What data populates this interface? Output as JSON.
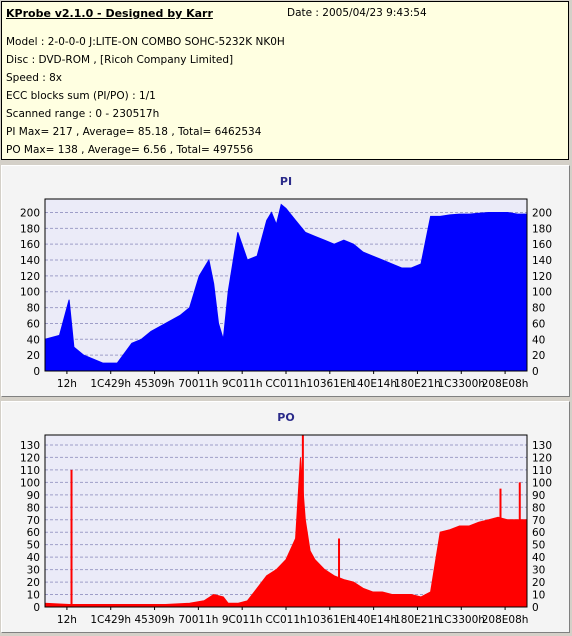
{
  "info": {
    "title": "KProbe v2.1.0 - Designed by Karr",
    "date": "Date : 2005/04/23 9:43:54",
    "model": "Model : 2-0-0-0 J:LITE-ON COMBO SOHC-5232K NK0H",
    "disc": "Disc : DVD-ROM ,  [Ricoh Company Limited]",
    "speed": "Speed : 8x",
    "ecc": "ECC blocks sum (PI/PO) : 1/1",
    "range": "Scanned range : 0 - 230517h",
    "pi": "PI Max= 217 , Average= 85.18 , Total= 6462534",
    "po": "PO Max= 138 , Average= 6.56 , Total= 497556"
  },
  "colors": {
    "pi": "#0000ff",
    "po": "#ff0000",
    "plot_bg": "#ebebf8",
    "grid": "#9e9ec8"
  },
  "chart_data": [
    {
      "type": "area",
      "title": "PI",
      "x_tick_labels": [
        "12h",
        "1C429h",
        "45309h",
        "70011h",
        "9C011h",
        "CC011h",
        "10361Eh",
        "140E14h",
        "180E21h",
        "1C3300h",
        "208E08h"
      ],
      "xlim": [
        0,
        100
      ],
      "ylim": [
        0,
        217
      ],
      "y_ticks": [
        0,
        20,
        40,
        60,
        80,
        100,
        120,
        140,
        160,
        180,
        200
      ],
      "grid": true,
      "series": [
        {
          "x": [
            0,
            3,
            5,
            6,
            8,
            10,
            12,
            15,
            18,
            20,
            22,
            25,
            28,
            30,
            32,
            34,
            35,
            36,
            37,
            38,
            40,
            42,
            44,
            46,
            47,
            48,
            49,
            50,
            52,
            54,
            56,
            58,
            60,
            62,
            64,
            66,
            68,
            70,
            72,
            74,
            76,
            78,
            80,
            82,
            84,
            86,
            88,
            90,
            92,
            94,
            96,
            98,
            100
          ],
          "values": [
            40,
            45,
            90,
            30,
            20,
            15,
            10,
            10,
            35,
            40,
            50,
            60,
            70,
            80,
            120,
            140,
            110,
            60,
            40,
            100,
            175,
            140,
            145,
            190,
            200,
            185,
            210,
            205,
            190,
            175,
            170,
            165,
            160,
            165,
            160,
            150,
            145,
            140,
            135,
            130,
            130,
            135,
            195,
            195,
            197,
            198,
            198,
            199,
            200,
            200,
            200,
            198,
            198
          ]
        }
      ]
    },
    {
      "type": "area",
      "title": "PO",
      "x_tick_labels": [
        "12h",
        "1C429h",
        "45309h",
        "70011h",
        "9C011h",
        "CC011h",
        "10361Eh",
        "140E14h",
        "180E21h",
        "1C3300h",
        "208E08h"
      ],
      "xlim": [
        0,
        100
      ],
      "ylim": [
        0,
        138
      ],
      "y_ticks": [
        0,
        10,
        20,
        30,
        40,
        50,
        60,
        70,
        80,
        90,
        100,
        110,
        120,
        130
      ],
      "grid": true,
      "spikes": [
        {
          "x": 5.5,
          "y": 110
        },
        {
          "x": 53.5,
          "y": 138
        },
        {
          "x": 61,
          "y": 55
        },
        {
          "x": 98.5,
          "y": 100
        },
        {
          "x": 94.5,
          "y": 95
        }
      ],
      "series": [
        {
          "x": [
            0,
            5,
            10,
            15,
            20,
            25,
            30,
            33,
            35,
            37,
            38,
            40,
            42,
            44,
            46,
            48,
            50,
            52,
            53,
            54,
            55,
            56,
            58,
            60,
            62,
            64,
            66,
            68,
            70,
            72,
            74,
            76,
            78,
            80,
            82,
            84,
            86,
            88,
            90,
            92,
            94,
            96,
            98,
            100
          ],
          "values": [
            3,
            2,
            2,
            2,
            2,
            2,
            3,
            5,
            10,
            8,
            3,
            3,
            5,
            15,
            25,
            30,
            38,
            55,
            120,
            70,
            45,
            38,
            30,
            25,
            22,
            20,
            15,
            12,
            12,
            10,
            10,
            10,
            8,
            12,
            60,
            62,
            65,
            65,
            68,
            70,
            72,
            70,
            70,
            70
          ]
        }
      ]
    }
  ]
}
